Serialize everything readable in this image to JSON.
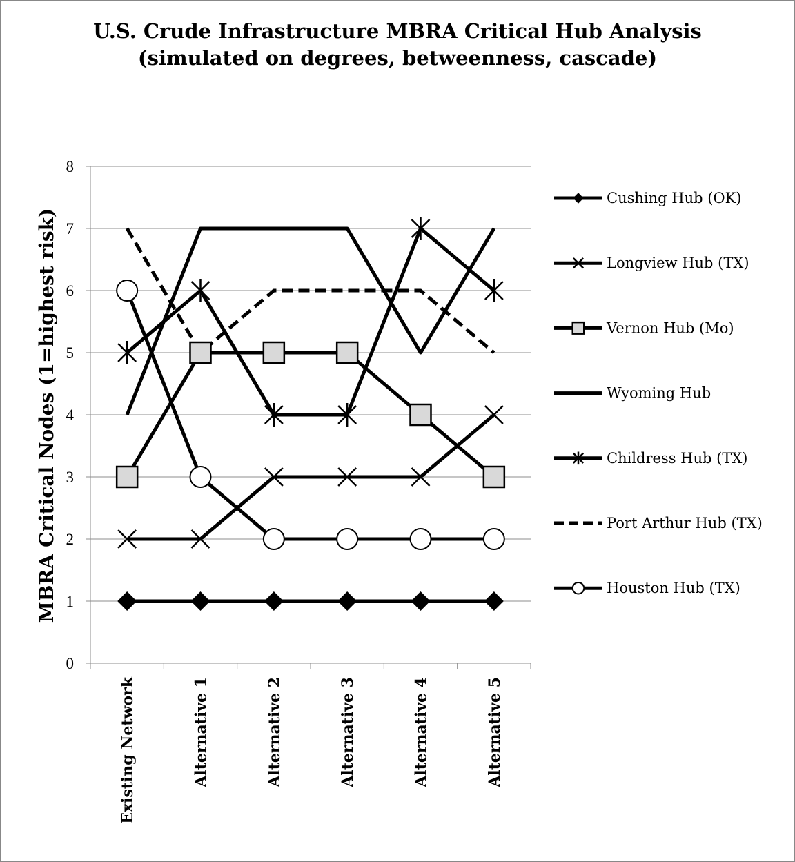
{
  "chart_data": {
    "type": "line",
    "title": "U.S. Crude Infrastructure MBRA Critical Hub Analysis",
    "subtitle": "(simulated on degrees, betweenness, cascade)",
    "xlabel": "",
    "ylabel": "MBRA Critical Nodes (1=highest risk)",
    "ylim": [
      0,
      8
    ],
    "yticks": [
      "0",
      "1",
      "2",
      "3",
      "4",
      "5",
      "6",
      "7",
      "8"
    ],
    "grid": true,
    "legend_position": "right",
    "categories": [
      "Existing Network",
      "Alternative 1",
      "Alternative 2",
      "Alternative 3",
      "Alternative 4",
      "Alternative 5"
    ],
    "series": [
      {
        "name": "Cushing Hub (OK)",
        "values": [
          1,
          1,
          1,
          1,
          1,
          1
        ],
        "marker": "diamond",
        "dash": "solid",
        "color": "#000000"
      },
      {
        "name": "Longview Hub (TX)",
        "values": [
          2,
          2,
          3,
          3,
          3,
          4
        ],
        "marker": "x",
        "dash": "solid",
        "color": "#000000"
      },
      {
        "name": "Vernon Hub (Mo)",
        "values": [
          3,
          5,
          5,
          5,
          4,
          3
        ],
        "marker": "square",
        "dash": "solid",
        "color": "#000000"
      },
      {
        "name": "Wyoming Hub",
        "values": [
          4,
          7,
          7,
          7,
          5,
          7
        ],
        "marker": "none",
        "dash": "solid",
        "color": "#000000"
      },
      {
        "name": "Childress Hub (TX)",
        "values": [
          5,
          6,
          4,
          4,
          7,
          6
        ],
        "marker": "asterisk",
        "dash": "solid",
        "color": "#000000"
      },
      {
        "name": "Port Arthur Hub (TX)",
        "values": [
          7,
          5,
          6,
          6,
          6,
          5
        ],
        "marker": "none",
        "dash": "dashed",
        "color": "#000000"
      },
      {
        "name": "Houston Hub (TX)",
        "values": [
          6,
          3,
          2,
          2,
          2,
          2
        ],
        "marker": "circle",
        "dash": "solid",
        "color": "#000000"
      }
    ]
  }
}
